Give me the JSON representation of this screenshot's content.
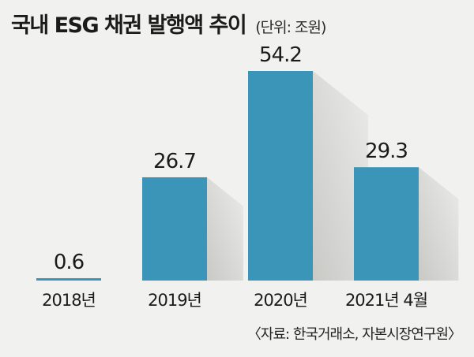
{
  "title": "국내 ESG 채권 발행액 추이",
  "subtitle": "(단위: 조원)",
  "source": "〈자료: 한국거래소, 자본시장연구원〉",
  "colors": {
    "background": "#f1f1ef",
    "bar": "#3a95b8",
    "shadow": "#c9c9c6",
    "baseline": "#222222"
  },
  "chart_data": {
    "type": "bar",
    "title": "국내 ESG 채권 발행액 추이",
    "subtitle": "(단위: 조원)",
    "categories": [
      "2018년",
      "2019년",
      "2020년",
      "2021년 4월"
    ],
    "values": [
      0.6,
      26.7,
      54.2,
      29.3
    ],
    "value_labels": [
      "0.6",
      "26.7",
      "54.2",
      "29.3"
    ],
    "ylim": [
      0,
      60
    ],
    "grid": false,
    "legend": "none"
  }
}
